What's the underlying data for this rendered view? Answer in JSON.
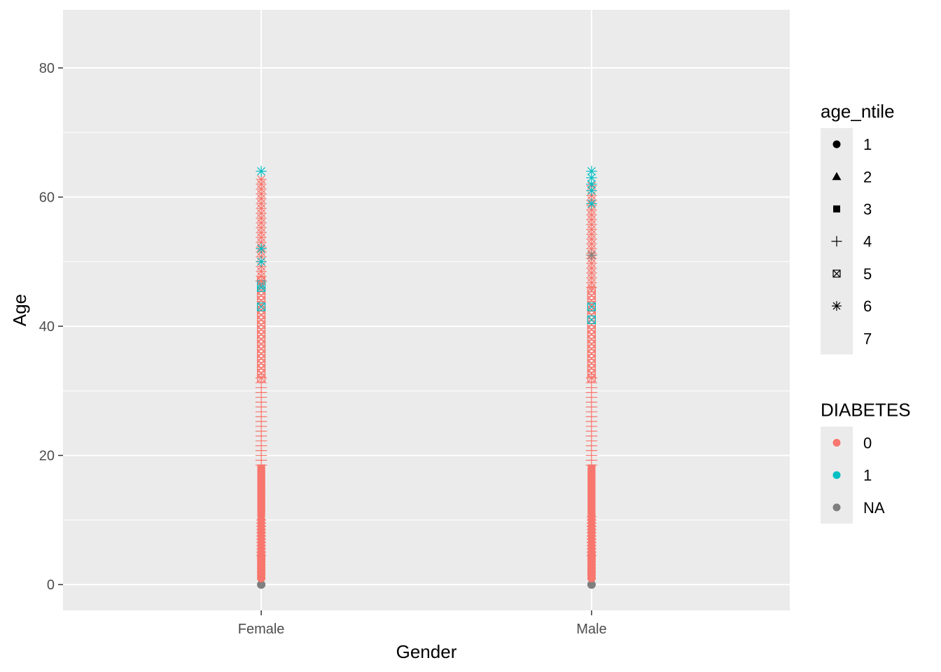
{
  "chart_data": {
    "type": "scatter",
    "xlabel": "Gender",
    "ylabel": "Age",
    "categories": [
      "Female",
      "Male"
    ],
    "ylim": [
      -4,
      89
    ],
    "yticks": [
      0,
      20,
      40,
      60,
      80
    ],
    "grid": true,
    "legend_placement": "right",
    "colors": {
      "0": "#F8766D",
      "1": "#00BFC4",
      "NA": "#7F7F7F",
      "panel": "#EBEBEB",
      "grid": "#FFFFFF"
    },
    "legends": [
      {
        "title": "age_ntile",
        "entries": [
          {
            "label": "1",
            "shape": "circle"
          },
          {
            "label": "2",
            "shape": "triangle"
          },
          {
            "label": "3",
            "shape": "square"
          },
          {
            "label": "4",
            "shape": "plus"
          },
          {
            "label": "5",
            "shape": "boxcross"
          },
          {
            "label": "6",
            "shape": "asterisk"
          },
          {
            "label": "7",
            "shape": "none"
          }
        ]
      },
      {
        "title": "DIABETES",
        "entries": [
          {
            "label": "0",
            "shape": "circle",
            "color": "#F8766D"
          },
          {
            "label": "1",
            "shape": "circle",
            "color": "#00BFC4"
          },
          {
            "label": "NA",
            "shape": "circle",
            "color": "#7F7F7F"
          }
        ]
      }
    ],
    "series": [
      {
        "category": "Female",
        "points": [
          {
            "ages": [
              0
            ],
            "shape": "circle",
            "diabetes": "NA"
          },
          {
            "range": [
              1,
              4.5,
              0.5
            ],
            "shape": "circle",
            "diabetes": "0"
          },
          {
            "range": [
              5,
              10.5,
              0.5
            ],
            "shape": "triangle",
            "diabetes": "0"
          },
          {
            "range": [
              11,
              18,
              0.25
            ],
            "shape": "square",
            "diabetes": "0"
          },
          {
            "range": [
              18.5,
              32,
              0.75
            ],
            "shape": "plus",
            "diabetes": "0"
          },
          {
            "range": [
              32,
              47,
              0.75
            ],
            "shape": "boxcross",
            "diabetes": "0"
          },
          {
            "ages": [
              43,
              46,
              46.5
            ],
            "shape": "boxcross",
            "diabetes": "1"
          },
          {
            "ages": [
              47
            ],
            "shape": "plus",
            "diabetes": "1"
          },
          {
            "range": [
              47,
              63,
              0.75
            ],
            "shape": "asterisk",
            "diabetes": "0"
          },
          {
            "ages": [
              50,
              52,
              64
            ],
            "shape": "asterisk",
            "diabetes": "1"
          }
        ]
      },
      {
        "category": "Male",
        "points": [
          {
            "ages": [
              0
            ],
            "shape": "circle",
            "diabetes": "NA"
          },
          {
            "range": [
              1,
              4.5,
              0.5
            ],
            "shape": "circle",
            "diabetes": "0"
          },
          {
            "range": [
              5,
              11,
              0.5
            ],
            "shape": "triangle",
            "diabetes": "0"
          },
          {
            "range": [
              11,
              18,
              0.25
            ],
            "shape": "square",
            "diabetes": "0"
          },
          {
            "range": [
              18.5,
              32,
              0.75
            ],
            "shape": "plus",
            "diabetes": "0"
          },
          {
            "range": [
              32,
              46,
              0.75
            ],
            "shape": "boxcross",
            "diabetes": "0"
          },
          {
            "ages": [
              41,
              43
            ],
            "shape": "boxcross",
            "diabetes": "1"
          },
          {
            "range": [
              46,
              62,
              0.75
            ],
            "shape": "asterisk",
            "diabetes": "0"
          },
          {
            "ages": [
              51
            ],
            "shape": "asterisk",
            "diabetes": "NA"
          },
          {
            "ages": [
              59,
              61,
              62,
              63,
              64
            ],
            "shape": "asterisk",
            "diabetes": "1"
          }
        ]
      }
    ]
  }
}
